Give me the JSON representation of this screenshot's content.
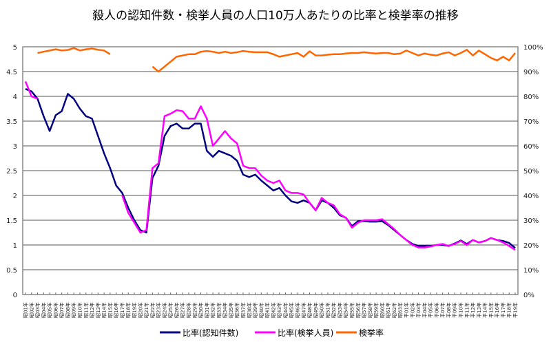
{
  "chart_data": {
    "type": "line",
    "title": "殺人の認知件数・検挙人員の人口10万人あたりの比率と検挙率の推移",
    "xlabel": "",
    "ylabel": "",
    "ylim": [
      0,
      5
    ],
    "y_ticks": [
      "0",
      "0.5",
      "1",
      "1.5",
      "2",
      "2.5",
      "3",
      "3.5",
      "4",
      "4.5",
      "5"
    ],
    "y2lim": [
      0,
      100
    ],
    "y2_ticks": [
      "0%",
      "10%",
      "20%",
      "30%",
      "40%",
      "50%",
      "60%",
      "70%",
      "80%",
      "90%",
      "100%"
    ],
    "grid": true,
    "legend_position": "bottom",
    "categories": [
      "昭01年",
      "昭02年",
      "昭03年",
      "昭04年",
      "昭05年",
      "昭06年",
      "昭07年",
      "昭08年",
      "昭09年",
      "昭10年",
      "昭11年",
      "昭12年",
      "昭13年",
      "昭14年",
      "昭15年",
      "昭16年",
      "昭17年",
      "昭18年",
      "昭19年",
      "昭20年",
      "昭21年",
      "昭22年",
      "昭23年",
      "昭24年",
      "昭25年",
      "昭26年",
      "昭27年",
      "昭28年",
      "昭29年",
      "昭30年",
      "昭31年",
      "昭32年",
      "昭33年",
      "昭34年",
      "昭35年",
      "昭36年",
      "昭37年",
      "昭38年",
      "昭39年",
      "昭40年",
      "昭41年",
      "昭42年",
      "昭43年",
      "昭44年",
      "昭45年",
      "昭46年",
      "昭47年",
      "昭48年",
      "昭49年",
      "昭50年",
      "昭51年",
      "昭52年",
      "昭53年",
      "昭54年",
      "昭55年",
      "昭56年",
      "昭57年",
      "昭58年",
      "昭59年",
      "昭60年",
      "昭61年",
      "昭62年",
      "昭63年",
      "平01年",
      "平02年",
      "平03年",
      "平04年",
      "平05年",
      "平06年",
      "平07年",
      "平08年",
      "平09年",
      "平10年",
      "平11年",
      "平12年",
      "平13年",
      "平14年",
      "平15年",
      "平16年",
      "平17年",
      "平18年",
      "平19年"
    ],
    "series": [
      {
        "name": "比率(認知件数)",
        "axis": "left",
        "color": "#000080",
        "values": [
          4.15,
          4.1,
          3.95,
          3.6,
          3.3,
          3.62,
          3.7,
          4.05,
          3.95,
          3.75,
          3.6,
          3.55,
          3.2,
          2.85,
          2.55,
          2.2,
          2.05,
          1.75,
          1.5,
          1.3,
          1.25,
          2.35,
          2.6,
          3.2,
          3.4,
          3.45,
          3.35,
          3.35,
          3.45,
          3.45,
          2.9,
          2.78,
          2.9,
          2.85,
          2.8,
          2.7,
          2.42,
          2.37,
          2.42,
          2.3,
          2.2,
          2.1,
          2.15,
          2.0,
          1.88,
          1.85,
          1.9,
          1.85,
          1.7,
          1.9,
          1.85,
          1.75,
          1.6,
          1.55,
          1.38,
          1.48,
          1.48,
          1.47,
          1.47,
          1.48,
          1.4,
          1.3,
          1.2,
          1.1,
          1.02,
          0.98,
          0.98,
          0.98,
          1.0,
          1.0,
          0.98,
          1.03,
          1.09,
          1.02,
          1.1,
          1.05,
          1.08,
          1.14,
          1.1,
          1.08,
          1.04,
          0.94
        ]
      },
      {
        "name": "比率(検挙人員)",
        "axis": "left",
        "color": "#FF00FF",
        "values": [
          4.3,
          4.0,
          3.95,
          null,
          null,
          null,
          null,
          null,
          null,
          null,
          null,
          null,
          null,
          null,
          null,
          null,
          2.0,
          1.65,
          1.45,
          1.25,
          1.3,
          2.55,
          2.65,
          3.6,
          3.65,
          3.72,
          3.7,
          3.55,
          3.55,
          3.8,
          3.55,
          3.0,
          3.15,
          3.3,
          3.15,
          3.05,
          2.6,
          2.55,
          2.55,
          2.4,
          2.3,
          2.25,
          2.3,
          2.1,
          2.05,
          2.05,
          2.02,
          1.85,
          1.7,
          1.95,
          1.85,
          1.8,
          1.62,
          1.55,
          1.35,
          1.45,
          1.5,
          1.5,
          1.5,
          1.52,
          1.42,
          1.32,
          1.2,
          1.1,
          1.0,
          0.95,
          0.95,
          0.97,
          1.0,
          1.02,
          0.98,
          1.02,
          1.08,
          1.0,
          1.1,
          1.05,
          1.08,
          1.14,
          1.1,
          1.05,
          0.98,
          0.9
        ]
      },
      {
        "name": "検挙率",
        "axis": "right",
        "color": "#FF6600",
        "values": [
          null,
          null,
          97.5,
          98,
          98.5,
          99,
          98.5,
          98.7,
          99.5,
          98.5,
          99,
          99.3,
          98.8,
          98.5,
          97,
          null,
          null,
          null,
          null,
          null,
          null,
          92,
          90,
          92,
          94,
          96,
          96.5,
          97,
          97,
          98,
          98.3,
          98,
          97.5,
          98,
          97.5,
          97.8,
          98.3,
          98,
          97.8,
          97.8,
          97.8,
          97,
          96,
          96.5,
          97,
          97.5,
          96,
          98.2,
          96.5,
          96.5,
          96.8,
          97,
          97,
          97.3,
          97.5,
          97.5,
          97.8,
          97.5,
          97.3,
          97.5,
          97.5,
          97,
          97.3,
          98.5,
          97.5,
          96.5,
          97.3,
          96.8,
          96.5,
          97.3,
          97.8,
          96.5,
          97.5,
          98.8,
          96.5,
          98.5,
          97,
          95.5,
          94.5,
          96,
          94.5,
          97.5
        ]
      }
    ]
  }
}
